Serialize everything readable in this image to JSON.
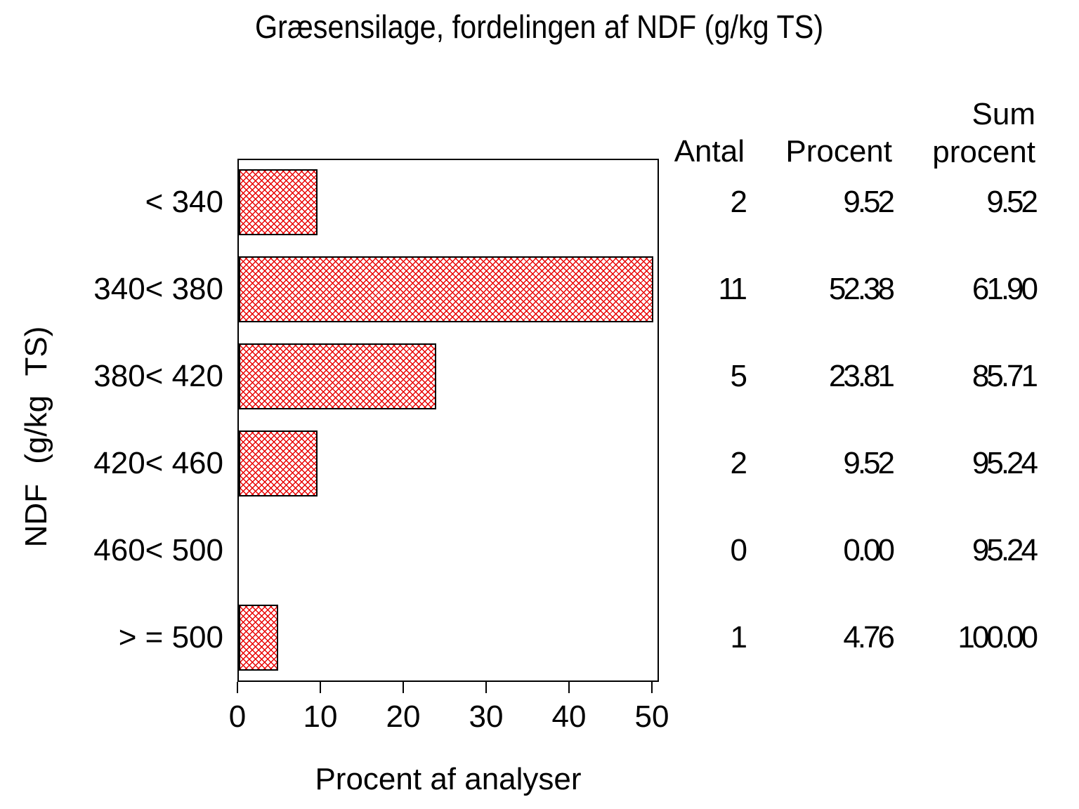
{
  "title": "Græsensilage, fordelingen af NDF (g/kg TS)",
  "chart_data": {
    "type": "bar",
    "orientation": "horizontal",
    "title": "Græsensilage, fordelingen af NDF (g/kg TS)",
    "xlabel": "Procent af analyser",
    "ylabel": "NDF (g/kg TS)",
    "categories": [
      "< 340",
      "340< 380",
      "380< 420",
      "420< 460",
      "460< 500",
      "> = 500"
    ],
    "values": [
      9.52,
      52.38,
      23.81,
      9.52,
      0,
      4.76
    ],
    "xlim": [
      0,
      50
    ],
    "xticks": [
      "0",
      "10",
      "20",
      "30",
      "40",
      "50"
    ],
    "grid": "off",
    "bar_fill": "red diagonal crosshatch on white, black border, bars exceeding axis max are clipped at 50",
    "colors": {
      "hatch": "#e80000",
      "frame": "#000000",
      "text": "#000000",
      "background": "#ffffff"
    },
    "table": {
      "headers": {
        "antal": "Antal",
        "procent": "Procent",
        "sum_line1": "Sum",
        "sum_line2": "procent"
      },
      "rows": [
        {
          "antal": "2",
          "procent": "9.52",
          "sum": "9.52"
        },
        {
          "antal": "11",
          "procent": "52.38",
          "sum": "61.90"
        },
        {
          "antal": "5",
          "procent": "23.81",
          "sum": "85.71"
        },
        {
          "antal": "2",
          "procent": "9.52",
          "sum": "95.24"
        },
        {
          "antal": "0",
          "procent": "0.00",
          "sum": "95.24"
        },
        {
          "antal": "1",
          "procent": "4.76",
          "sum": "100.00"
        }
      ]
    }
  }
}
